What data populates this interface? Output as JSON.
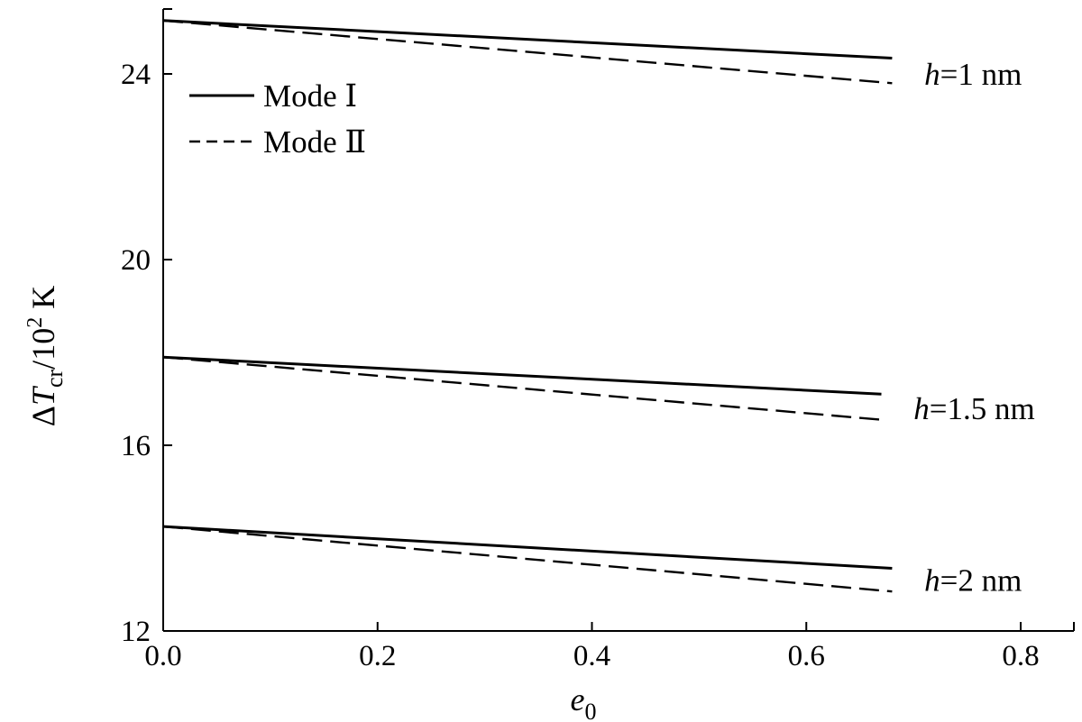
{
  "chart_data": {
    "type": "line",
    "xlabel_main": "e",
    "xlabel_sub": "0",
    "ylabel_delta": "Δ",
    "ylabel_var": "T",
    "ylabel_sub": "cr",
    "ylabel_rest": "/10",
    "ylabel_sup": "2",
    "ylabel_unit": " K",
    "xlim": [
      0.0,
      0.85
    ],
    "ylim": [
      12,
      25.2
    ],
    "x_ticks": [
      "0.0",
      "0.2",
      "0.4",
      "0.6",
      "0.8"
    ],
    "x_tick_values": [
      0.0,
      0.2,
      0.4,
      0.6,
      0.8
    ],
    "y_ticks": [
      "12",
      "16",
      "20",
      "24"
    ],
    "y_tick_values": [
      12,
      16,
      20,
      24
    ],
    "legend": {
      "placement": "top-left",
      "entries": [
        {
          "label": "Mode Ⅰ",
          "style": "solid"
        },
        {
          "label": "Mode Ⅱ",
          "style": "dashed"
        }
      ]
    },
    "series": [
      {
        "mode": "Mode Ⅰ",
        "group": 0,
        "style": "solid",
        "x": [
          0.0,
          0.68
        ],
        "y": [
          25.15,
          24.34
        ]
      },
      {
        "mode": "Mode Ⅱ",
        "group": 0,
        "style": "dashed",
        "x": [
          0.0,
          0.68
        ],
        "y": [
          25.15,
          23.8
        ]
      },
      {
        "mode": "Mode Ⅰ",
        "group": 1,
        "style": "solid",
        "x": [
          0.0,
          0.67
        ],
        "y": [
          17.9,
          17.1
        ]
      },
      {
        "mode": "Mode Ⅱ",
        "group": 1,
        "style": "dashed",
        "x": [
          0.0,
          0.67
        ],
        "y": [
          17.9,
          16.55
        ]
      },
      {
        "mode": "Mode Ⅰ",
        "group": 2,
        "style": "solid",
        "x": [
          0.0,
          0.68
        ],
        "y": [
          14.25,
          13.35
        ]
      },
      {
        "mode": "Mode Ⅱ",
        "group": 2,
        "style": "dashed",
        "x": [
          0.0,
          0.68
        ],
        "y": [
          14.25,
          12.85
        ]
      }
    ],
    "curve_labels": [
      {
        "var": "h",
        "text": "=1 nm",
        "x": 0.7,
        "y": 24.0
      },
      {
        "var": "h",
        "text": "=1.5 nm",
        "x": 0.69,
        "y": 16.8
      },
      {
        "var": "h",
        "text": "=2 nm",
        "x": 0.7,
        "y": 13.1
      }
    ],
    "grid": false,
    "colors": {
      "line": "#000000",
      "background": "#ffffff"
    }
  }
}
